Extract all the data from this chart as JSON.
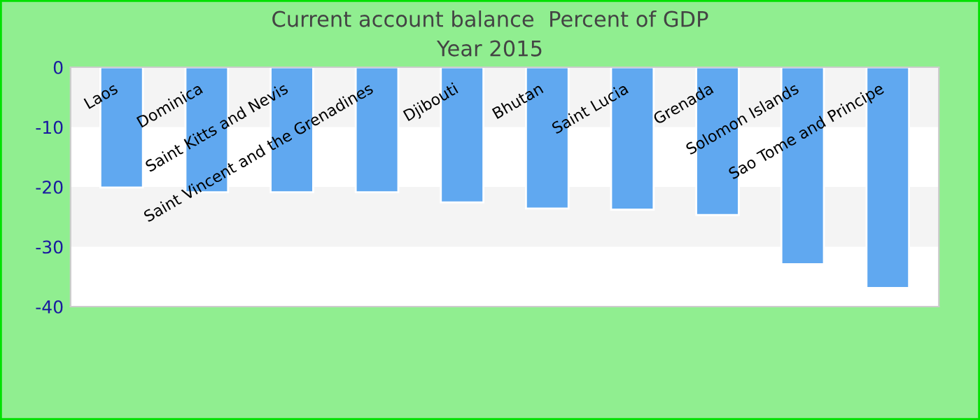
{
  "chart_data": {
    "type": "bar",
    "title": "Current account balance  Percent of GDP",
    "subtitle": "Year 2015",
    "categories": [
      "Laos",
      "Dominica",
      "Saint Kitts and Nevis",
      "Saint Vincent and the Grenadines",
      "Djibouti",
      "Bhutan",
      "Saint Lucia",
      "Grenada",
      "Solomon Islands",
      "Sao Tome and Principe"
    ],
    "values": [
      -20.1,
      -20.9,
      -20.9,
      -20.9,
      -22.6,
      -23.6,
      -23.8,
      -24.7,
      -32.9,
      -36.9
    ],
    "color": "#60a8f0",
    "ylim": [
      -40,
      0
    ],
    "yticks": [
      -40,
      -30,
      -20,
      -10,
      0
    ],
    "bands": [
      {
        "axis": "y",
        "from": -10,
        "to": 0,
        "color": "#f4f4f4"
      },
      {
        "axis": "y",
        "from": -30,
        "to": -20,
        "color": "#f4f4f4"
      }
    ],
    "grid": false
  }
}
